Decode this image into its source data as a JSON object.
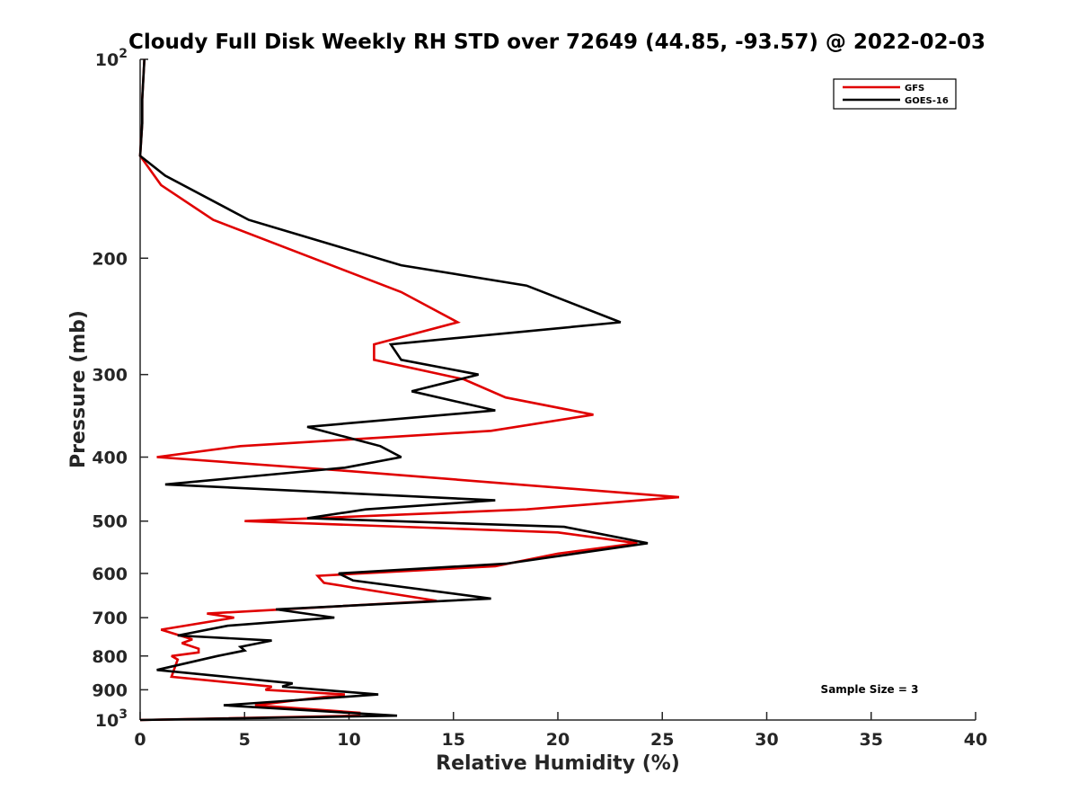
{
  "chart_data": {
    "type": "line",
    "title": "Cloudy Full Disk Weekly RH STD over 72649 (44.85, -93.57) @ 2022-02-03",
    "xlabel": "Relative Humidity (%)",
    "ylabel": "Pressure (mb)",
    "xlim": [
      0,
      40
    ],
    "ylim": [
      100,
      1000
    ],
    "y_scale": "log",
    "y_reversed": true,
    "grid": false,
    "legend_position": "top-right",
    "x_ticks": [
      "0",
      "5",
      "10",
      "15",
      "20",
      "25",
      "30",
      "35",
      "40"
    ],
    "y_ticks": [
      {
        "value": 100,
        "base": "10",
        "exp": "2"
      },
      {
        "value": 200,
        "label": "200"
      },
      {
        "value": 300,
        "label": "300"
      },
      {
        "value": 400,
        "label": "400"
      },
      {
        "value": 500,
        "label": "500"
      },
      {
        "value": 600,
        "label": "600"
      },
      {
        "value": 700,
        "label": "700"
      },
      {
        "value": 800,
        "label": "800"
      },
      {
        "value": 900,
        "label": "900"
      },
      {
        "value": 1000,
        "base": "10",
        "exp": "3"
      }
    ],
    "annotation": "Sample Size = 3",
    "series": [
      {
        "name": "GFS",
        "color": "#e00000",
        "points": [
          [
            0.2,
            100
          ],
          [
            0.1,
            115
          ],
          [
            0.1,
            125
          ],
          [
            0.0,
            140
          ],
          [
            1.0,
            155
          ],
          [
            3.5,
            175
          ],
          [
            12.5,
            225
          ],
          [
            15.2,
            250
          ],
          [
            11.2,
            270
          ],
          [
            11.2,
            285
          ],
          [
            15.5,
            305
          ],
          [
            17.5,
            325
          ],
          [
            21.7,
            345
          ],
          [
            16.8,
            365
          ],
          [
            4.8,
            385
          ],
          [
            0.8,
            400
          ],
          [
            10.0,
            420
          ],
          [
            25.8,
            460
          ],
          [
            18.5,
            480
          ],
          [
            5.0,
            500
          ],
          [
            20.0,
            520
          ],
          [
            23.8,
            540
          ],
          [
            20.0,
            560
          ],
          [
            17.0,
            585
          ],
          [
            8.5,
            605
          ],
          [
            8.8,
            620
          ],
          [
            14.2,
            660
          ],
          [
            3.2,
            690
          ],
          [
            4.5,
            700
          ],
          [
            1.0,
            730
          ],
          [
            2.5,
            755
          ],
          [
            2.0,
            765
          ],
          [
            2.8,
            780
          ],
          [
            2.8,
            790
          ],
          [
            1.5,
            800
          ],
          [
            1.8,
            810
          ],
          [
            1.5,
            860
          ],
          [
            6.3,
            890
          ],
          [
            6.0,
            900
          ],
          [
            9.8,
            915
          ],
          [
            5.5,
            950
          ],
          [
            10.5,
            975
          ],
          [
            10.5,
            985
          ],
          [
            0.0,
            1000
          ]
        ]
      },
      {
        "name": "GOES-16",
        "color": "#000000",
        "points": [
          [
            0.2,
            100
          ],
          [
            0.1,
            115
          ],
          [
            0.1,
            125
          ],
          [
            0.0,
            140
          ],
          [
            1.2,
            150
          ],
          [
            5.2,
            175
          ],
          [
            12.5,
            205
          ],
          [
            18.5,
            220
          ],
          [
            23.0,
            250
          ],
          [
            12.0,
            270
          ],
          [
            12.5,
            285
          ],
          [
            16.2,
            300
          ],
          [
            13.0,
            318
          ],
          [
            17.0,
            340
          ],
          [
            8.0,
            360
          ],
          [
            11.5,
            385
          ],
          [
            12.5,
            400
          ],
          [
            9.8,
            415
          ],
          [
            1.2,
            440
          ],
          [
            17.0,
            465
          ],
          [
            10.8,
            480
          ],
          [
            8.0,
            495
          ],
          [
            20.3,
            510
          ],
          [
            24.3,
            540
          ],
          [
            17.5,
            580
          ],
          [
            9.5,
            600
          ],
          [
            10.2,
            615
          ],
          [
            16.8,
            655
          ],
          [
            6.5,
            680
          ],
          [
            9.3,
            700
          ],
          [
            4.2,
            720
          ],
          [
            1.8,
            745
          ],
          [
            6.3,
            758
          ],
          [
            4.8,
            775
          ],
          [
            5.0,
            785
          ],
          [
            3.7,
            800
          ],
          [
            0.8,
            840
          ],
          [
            7.3,
            880
          ],
          [
            6.8,
            890
          ],
          [
            11.4,
            915
          ],
          [
            4.0,
            950
          ],
          [
            12.3,
            985
          ],
          [
            0.0,
            1000
          ]
        ]
      }
    ]
  }
}
